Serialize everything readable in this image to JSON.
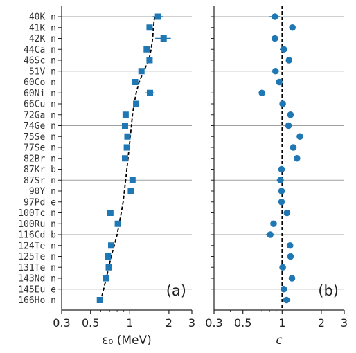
{
  "chart_data": [
    {
      "type": "scatter",
      "panel_label": "(a)",
      "xlabel": "ε₀ (MeV)",
      "xscale": "log",
      "xlim": [
        0.3,
        3
      ],
      "xticks": [
        0.3,
        0.5,
        1,
        2,
        3
      ],
      "xticklabels": [
        "0.3",
        "0.5",
        "1",
        "2",
        "3"
      ],
      "categories": [
        "40K  n",
        "41K  n",
        "42K  n",
        "44Ca n",
        "46Sc n",
        "51V  n",
        "60Co n",
        "60Ni n",
        "66Cu n",
        "72Ga n",
        "74Ge n",
        "75Se n",
        "77Se n",
        "82Br n",
        "87Kr b",
        "87Sr n",
        "90Y  n",
        "97Pd e",
        "100Tc n",
        "100Ru n",
        "116Cd b",
        "124Te n",
        "125Te n",
        "131Te n",
        "143Nd n",
        "145Eu e",
        "166Ho n"
      ],
      "points": [
        {
          "row": 0,
          "x": 1.65,
          "err": 0.15
        },
        {
          "row": 1,
          "x": 1.42,
          "err": 0.05
        },
        {
          "row": 2,
          "x": 1.82,
          "err": 0.25
        },
        {
          "row": 3,
          "x": 1.35,
          "err": 0.05
        },
        {
          "row": 4,
          "x": 1.42,
          "err": 0.05
        },
        {
          "row": 5,
          "x": 1.23,
          "err": 0.05
        },
        {
          "row": 6,
          "x": 1.1,
          "err": 0.05
        },
        {
          "row": 7,
          "x": 1.43,
          "err": 0.12
        },
        {
          "row": 8,
          "x": 1.12,
          "err": 0.05
        },
        {
          "row": 9,
          "x": 0.93,
          "err": 0.03
        },
        {
          "row": 10,
          "x": 0.92,
          "err": 0.03
        },
        {
          "row": 11,
          "x": 0.96,
          "err": 0.03
        },
        {
          "row": 12,
          "x": 0.95,
          "err": 0.03
        },
        {
          "row": 13,
          "x": 0.92,
          "err": 0.03
        },
        {
          "row": 15,
          "x": 1.05,
          "err": 0.04
        },
        {
          "row": 16,
          "x": 1.02,
          "err": 0.03
        },
        {
          "row": 18,
          "x": 0.71,
          "err": 0.02
        },
        {
          "row": 19,
          "x": 0.81,
          "err": 0.02
        },
        {
          "row": 21,
          "x": 0.72,
          "err": 0.02
        },
        {
          "row": 22,
          "x": 0.68,
          "err": 0.02
        },
        {
          "row": 23,
          "x": 0.69,
          "err": 0.02
        },
        {
          "row": 24,
          "x": 0.66,
          "err": 0.02
        },
        {
          "row": 26,
          "x": 0.59,
          "err": 0.02
        }
      ],
      "trend": [
        {
          "row": 0,
          "x": 1.55
        },
        {
          "row": 1,
          "x": 1.52
        },
        {
          "row": 2,
          "x": 1.5
        },
        {
          "row": 3,
          "x": 1.46
        },
        {
          "row": 4,
          "x": 1.4
        },
        {
          "row": 5,
          "x": 1.28
        },
        {
          "row": 6,
          "x": 1.18
        },
        {
          "row": 7,
          "x": 1.12
        },
        {
          "row": 8,
          "x": 1.08
        },
        {
          "row": 9,
          "x": 1.05
        },
        {
          "row": 10,
          "x": 1.03
        },
        {
          "row": 11,
          "x": 1.01
        },
        {
          "row": 12,
          "x": 0.99
        },
        {
          "row": 13,
          "x": 0.97
        },
        {
          "row": 14,
          "x": 0.95
        },
        {
          "row": 15,
          "x": 0.93
        },
        {
          "row": 16,
          "x": 0.91
        },
        {
          "row": 17,
          "x": 0.89
        },
        {
          "row": 18,
          "x": 0.86
        },
        {
          "row": 19,
          "x": 0.83
        },
        {
          "row": 20,
          "x": 0.8
        },
        {
          "row": 21,
          "x": 0.76
        },
        {
          "row": 22,
          "x": 0.72
        },
        {
          "row": 23,
          "x": 0.69
        },
        {
          "row": 24,
          "x": 0.66
        },
        {
          "row": 25,
          "x": 0.63
        },
        {
          "row": 26,
          "x": 0.6
        }
      ],
      "marker": "square",
      "color": "#1f77b4",
      "trend_color": "#000000",
      "separator_rows": [
        0,
        5,
        10,
        15,
        20,
        25
      ],
      "separator_color": "#a0a0a0"
    },
    {
      "type": "scatter",
      "panel_label": "(b)",
      "xlabel": "c",
      "xscale": "log",
      "xlim": [
        0.3,
        3
      ],
      "xticks": [
        0.3,
        0.5,
        1,
        2,
        3
      ],
      "xticklabels": [
        "0.3",
        "0.5",
        "1",
        "2",
        "3"
      ],
      "points": [
        {
          "row": 0,
          "x": 0.88,
          "err": 0.08
        },
        {
          "row": 1,
          "x": 1.2,
          "err": 0.04
        },
        {
          "row": 2,
          "x": 0.88,
          "err": 0.03
        },
        {
          "row": 3,
          "x": 1.03,
          "err": 0.07
        },
        {
          "row": 4,
          "x": 1.13,
          "err": 0.05
        },
        {
          "row": 5,
          "x": 0.89,
          "err": 0.05
        },
        {
          "row": 6,
          "x": 0.95,
          "err": 0.05
        },
        {
          "row": 7,
          "x": 0.7,
          "err": 0.04
        },
        {
          "row": 8,
          "x": 1.01,
          "err": 0.04
        },
        {
          "row": 9,
          "x": 1.16,
          "err": 0.07
        },
        {
          "row": 10,
          "x": 1.12,
          "err": 0.04
        },
        {
          "row": 11,
          "x": 1.37,
          "err": 0.05
        },
        {
          "row": 12,
          "x": 1.22,
          "err": 0.05
        },
        {
          "row": 13,
          "x": 1.3,
          "err": 0.05
        },
        {
          "row": 14,
          "x": 0.99,
          "err": 0.04
        },
        {
          "row": 15,
          "x": 0.97,
          "err": 0.06
        },
        {
          "row": 16,
          "x": 0.99,
          "err": 0.04
        },
        {
          "row": 17,
          "x": 0.99,
          "err": 0.04
        },
        {
          "row": 18,
          "x": 1.09,
          "err": 0.05
        },
        {
          "row": 19,
          "x": 0.86,
          "err": 0.04
        },
        {
          "row": 20,
          "x": 0.81,
          "err": 0.06
        },
        {
          "row": 21,
          "x": 1.15,
          "err": 0.05
        },
        {
          "row": 22,
          "x": 1.16,
          "err": 0.05
        },
        {
          "row": 23,
          "x": 1.01,
          "err": 0.04
        },
        {
          "row": 24,
          "x": 1.19,
          "err": 0.06
        },
        {
          "row": 25,
          "x": 1.03,
          "err": 0.04
        },
        {
          "row": 26,
          "x": 1.08,
          "err": 0.08
        }
      ],
      "reference_x": 1,
      "marker": "circle",
      "color": "#1f77b4",
      "reference_color": "#000000",
      "separator_rows": [
        0,
        5,
        10,
        15,
        20,
        25
      ],
      "separator_color": "#a0a0a0"
    }
  ]
}
